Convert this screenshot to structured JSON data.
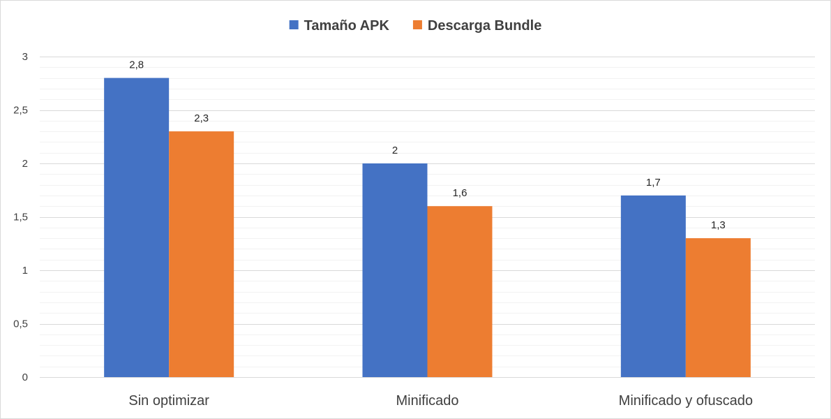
{
  "chart_data": {
    "type": "bar",
    "categories": [
      "Sin optimizar",
      "Minificado",
      "Minificado y ofuscado"
    ],
    "series": [
      {
        "name": "Tamaño APK",
        "values": [
          2.8,
          2.0,
          1.7
        ],
        "labels": [
          "2,8",
          "2",
          "1,7"
        ],
        "color": "#4472C4"
      },
      {
        "name": "Descarga Bundle",
        "values": [
          2.3,
          1.6,
          1.3
        ],
        "labels": [
          "2,3",
          "1,6",
          "1,3"
        ],
        "color": "#ED7D31"
      }
    ],
    "ylim": [
      0,
      3
    ],
    "yticks": [
      0,
      0.5,
      1,
      1.5,
      2,
      2.5,
      3
    ],
    "ytick_labels": [
      "0",
      "0,5",
      "1",
      "1,5",
      "2",
      "2,5",
      "3"
    ],
    "grid": true,
    "legend_position": "top-center",
    "title": "",
    "xlabel": "",
    "ylabel": ""
  }
}
